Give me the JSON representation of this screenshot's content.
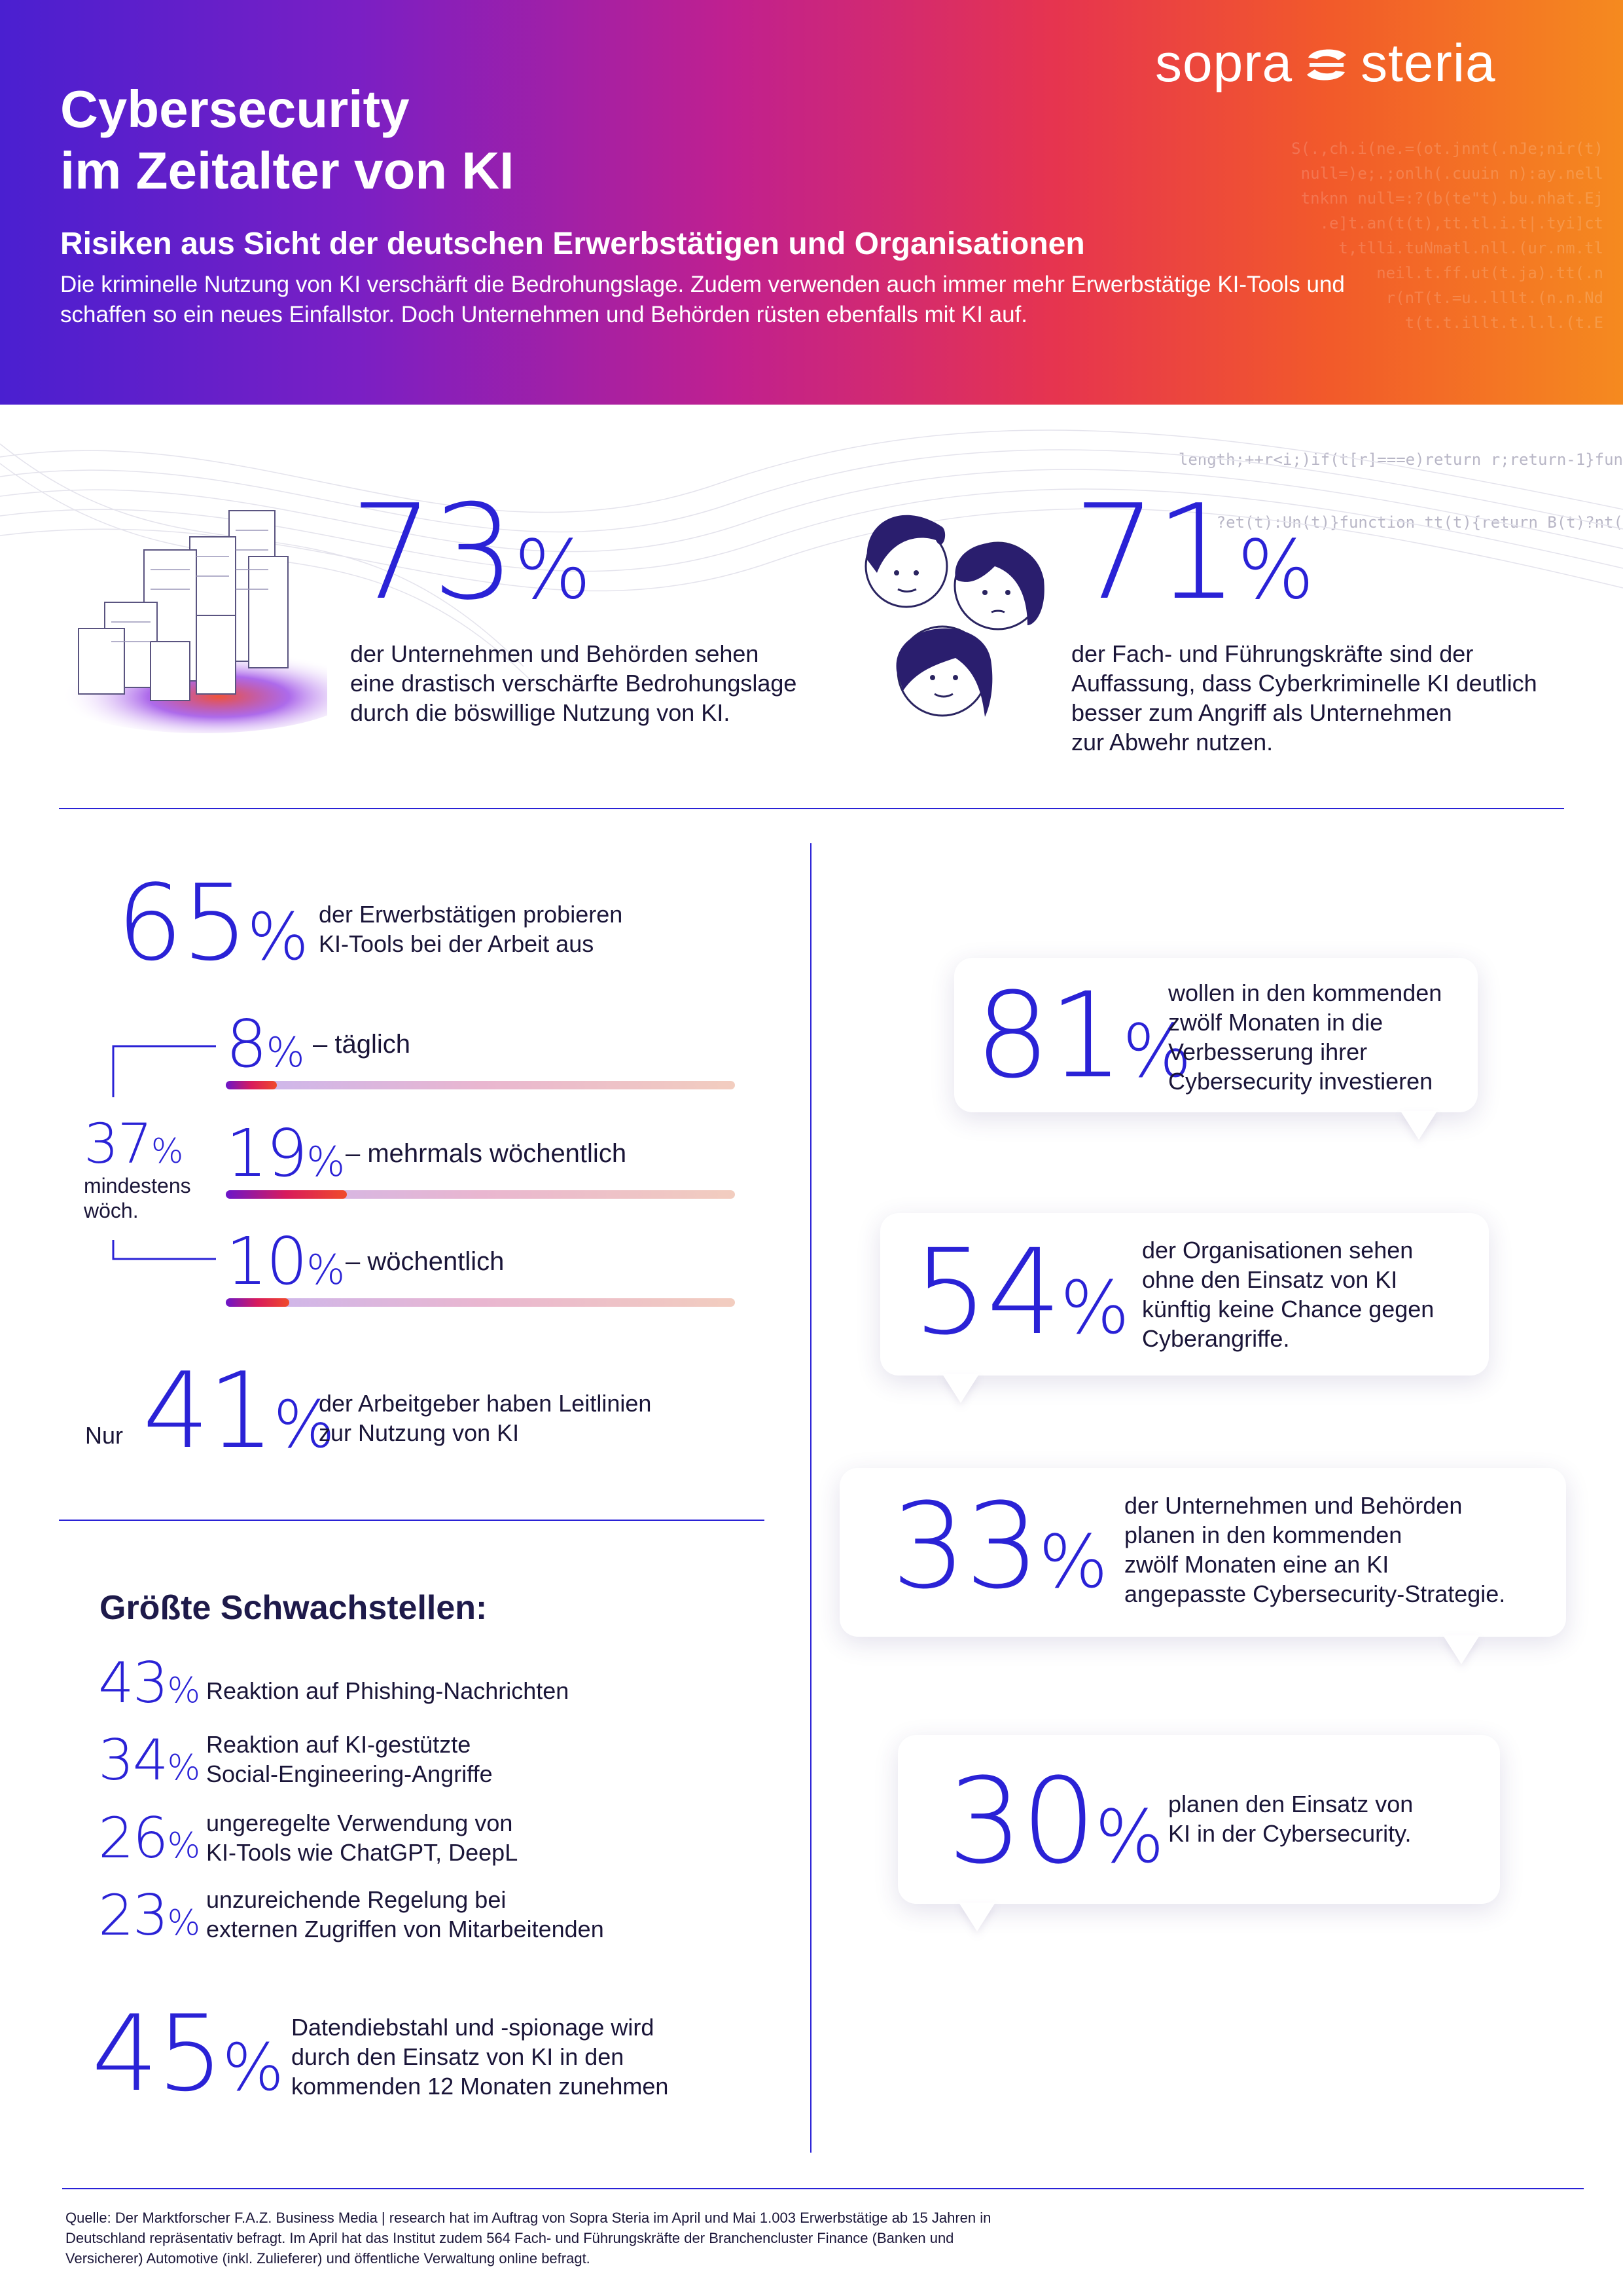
{
  "header": {
    "logo_left": "sopra",
    "logo_right": "steria",
    "title_line1": "Cybersecurity",
    "title_line2": "im Zeitalter von KI",
    "subtitle": "Risiken aus Sicht der deutschen Erwerbstätigen und Organisationen",
    "intro_line1": "Die kriminelle Nutzung von KI verschärft die Bedrohungslage. Zudem verwenden auch immer mehr Erwerbstätige KI-Tools und",
    "intro_line2": "schaffen so ein neues Einfallstor. Doch Unternehmen und Behörden rüsten ebenfalls mit KI auf.",
    "code_under_1": "length;++r<i;)if(t[r]===e)return r;return-1}fun",
    "code_under_2": "?et(t):Un(t)}function tt(t){return B(t)?nt("
  },
  "stats_top": [
    {
      "value": "73",
      "pct": "%",
      "lines": [
        "der Unternehmen und Behörden sehen",
        "eine drastisch verschärfte Bedrohungslage",
        "durch die böswillige Nutzung von KI."
      ]
    },
    {
      "value": "71",
      "pct": "%",
      "lines": [
        "der Fach- und Führungskräfte sind der",
        "Auffassung, dass Cyberkriminelle KI deutlich",
        "besser zum Angriff als Unternehmen",
        "zur Abwehr nutzen."
      ]
    }
  ],
  "usage": {
    "value": "65",
    "pct": "%",
    "lines": [
      "der Erwerbstätigen probieren",
      "KI-Tools bei der Arbeit aus"
    ],
    "group_value": "37",
    "group_pct": "%",
    "group_label_1": "mindestens",
    "group_label_2": "wöch.",
    "items": [
      {
        "value": "8",
        "pct": "%",
        "label": "– täglich",
        "share": 0.08
      },
      {
        "value": "19",
        "pct": "%",
        "label": "– mehrmals wöchentlich",
        "share": 0.19
      },
      {
        "value": "10",
        "pct": "%",
        "label": "– wöchentlich",
        "share": 0.1
      }
    ],
    "guidelines_prefix": "Nur",
    "guidelines_value": "41",
    "guidelines_pct": "%",
    "guidelines_lines": [
      "der Arbeitgeber haben Leitlinien",
      "zur Nutzung von KI"
    ]
  },
  "weaknesses": {
    "heading": "Größte Schwachstellen:",
    "items": [
      {
        "value": "43",
        "pct": "%",
        "lines": [
          "Reaktion auf Phishing-Nachrichten"
        ]
      },
      {
        "value": "34",
        "pct": "%",
        "lines": [
          "Reaktion auf KI-gestützte",
          "Social-Engineering-Angriffe"
        ]
      },
      {
        "value": "26",
        "pct": "%",
        "lines": [
          "ungeregelte Verwendung von",
          "KI-Tools wie ChatGPT, DeepL"
        ]
      },
      {
        "value": "23",
        "pct": "%",
        "lines": [
          "unzureichende Regelung bei",
          "externen Zugriffen von Mitarbeitenden"
        ]
      }
    ],
    "theft_value": "45",
    "theft_pct": "%",
    "theft_lines": [
      "Datendiebstahl und -spionage wird",
      "durch den Einsatz von KI in den",
      "kommenden 12 Monaten zunehmen"
    ]
  },
  "bubbles": [
    {
      "value": "81",
      "pct": "%",
      "lines": [
        "wollen in den kommenden",
        "zwölf Monaten in die",
        "Verbesserung ihrer",
        "Cybersecurity investieren"
      ]
    },
    {
      "value": "54",
      "pct": "%",
      "lines": [
        "der Organisationen sehen",
        "ohne den Einsatz von KI",
        "künftig keine Chance gegen",
        "Cyberangriffe."
      ]
    },
    {
      "value": "33",
      "pct": "%",
      "lines": [
        "der Unternehmen und Behörden",
        "planen in den kommenden",
        "zwölf Monaten eine an KI",
        "angepasste Cybersecurity-Strategie."
      ]
    },
    {
      "value": "30",
      "pct": "%",
      "lines": [
        "planen den Einsatz von",
        "KI in der Cybersecurity."
      ]
    }
  ],
  "source_lines": [
    "Quelle: Der Marktforscher F.A.Z. Business Media | research hat im Auftrag von Sopra Steria im April und Mai 1.003 Erwerbstätige ab 15 Jahren in",
    "Deutschland repräsentativ befragt. Im April hat das Institut zudem 564 Fach- und Führungskräfte der Branchencluster Finance (Banken und",
    "Versicherer) Automotive (inkl. Zulieferer) und öffentliche Verwaltung online befragt."
  ]
}
